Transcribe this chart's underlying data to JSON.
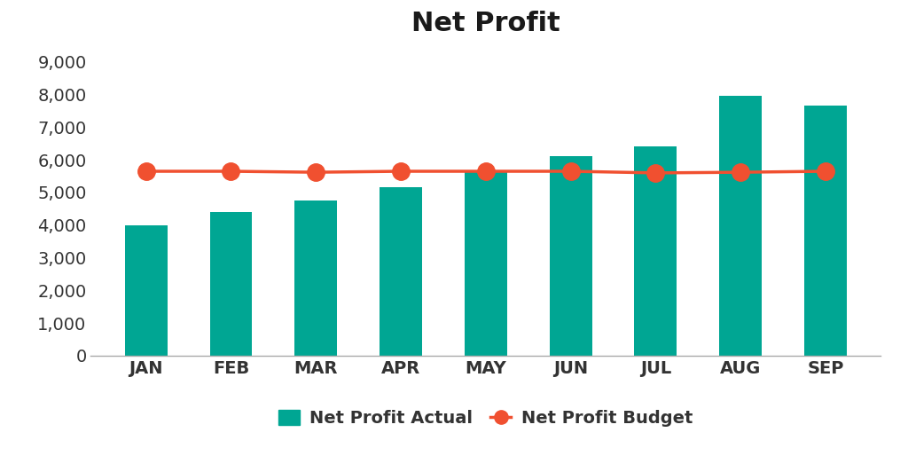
{
  "title": "Net Profit",
  "categories": [
    "JAN",
    "FEB",
    "MAR",
    "APR",
    "MAY",
    "JUN",
    "JUL",
    "AUG",
    "SEP"
  ],
  "bar_values": [
    4000,
    4400,
    4750,
    5150,
    5650,
    6100,
    6400,
    7950,
    7650
  ],
  "line_values": [
    5650,
    5650,
    5620,
    5650,
    5650,
    5650,
    5600,
    5620,
    5650
  ],
  "bar_color": "#00A693",
  "line_color": "#F05030",
  "background_color": "#FFFFFF",
  "title_fontsize": 22,
  "tick_label_fontsize": 14,
  "legend_fontsize": 14,
  "ylim": [
    0,
    9500
  ],
  "yticks": [
    0,
    1000,
    2000,
    3000,
    4000,
    5000,
    6000,
    7000,
    8000,
    9000
  ],
  "legend_actual": "Net Profit Actual",
  "legend_budget": "Net Profit Budget",
  "bar_width": 0.5
}
